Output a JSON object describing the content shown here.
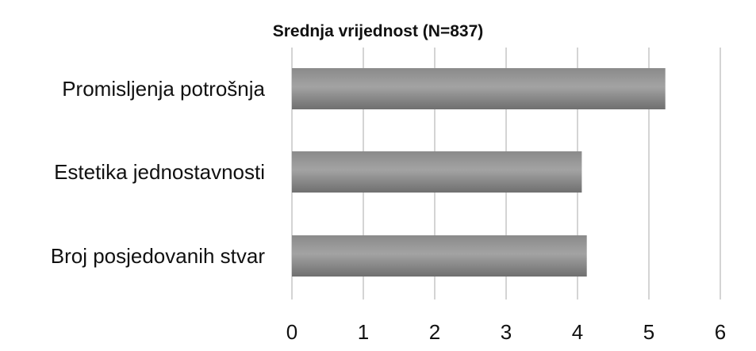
{
  "chart_data": {
    "type": "bar",
    "orientation": "horizontal",
    "title": "Srednja vrijednost (N=837)",
    "xlabel": "",
    "ylabel": "",
    "categories": [
      "Promisljenja potrošnja",
      "Estetika jednostavnosti",
      "Broj posjedovanih stvar"
    ],
    "values": [
      5.23,
      4.06,
      4.13
    ],
    "xlim": [
      0,
      6
    ],
    "xticks": [
      "0",
      "1",
      "2",
      "3",
      "4",
      "5",
      "6"
    ],
    "grid": "vertical",
    "legend": "none",
    "colors": {
      "bar_top": "#8a8a8a",
      "bar_mid": "#a3a3a3",
      "bar_bottom": "#6f6f6f",
      "grid": "#d4d4d4",
      "text": "#111111"
    }
  }
}
